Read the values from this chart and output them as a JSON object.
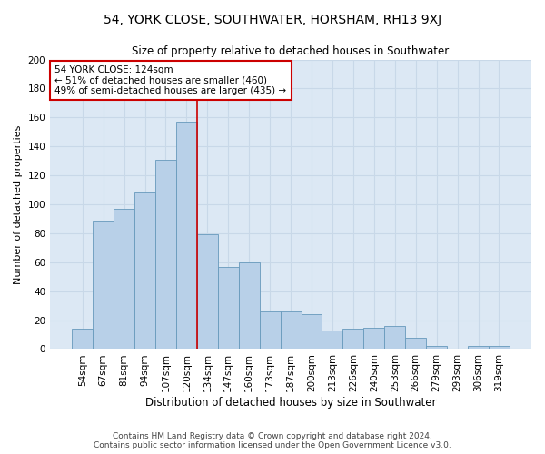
{
  "title": "54, YORK CLOSE, SOUTHWATER, HORSHAM, RH13 9XJ",
  "subtitle": "Size of property relative to detached houses in Southwater",
  "xlabel": "Distribution of detached houses by size in Southwater",
  "ylabel": "Number of detached properties",
  "footer_line1": "Contains HM Land Registry data © Crown copyright and database right 2024.",
  "footer_line2": "Contains public sector information licensed under the Open Government Licence v3.0.",
  "categories": [
    "54sqm",
    "67sqm",
    "81sqm",
    "94sqm",
    "107sqm",
    "120sqm",
    "134sqm",
    "147sqm",
    "160sqm",
    "173sqm",
    "187sqm",
    "200sqm",
    "213sqm",
    "226sqm",
    "240sqm",
    "253sqm",
    "266sqm",
    "279sqm",
    "293sqm",
    "306sqm",
    "319sqm"
  ],
  "values": [
    14,
    89,
    97,
    108,
    131,
    157,
    79,
    57,
    60,
    26,
    26,
    24,
    13,
    14,
    15,
    16,
    8,
    2,
    0,
    2,
    2
  ],
  "bar_color": "#b8d0e8",
  "bar_edge_color": "#6699bb",
  "vline_x_index": 5.5,
  "vline_color": "#cc0000",
  "annotation_title": "54 YORK CLOSE: 124sqm",
  "annotation_line1": "← 51% of detached houses are smaller (460)",
  "annotation_line2": "49% of semi-detached houses are larger (435) →",
  "annotation_box_edgecolor": "#cc0000",
  "ylim": [
    0,
    200
  ],
  "yticks": [
    0,
    20,
    40,
    60,
    80,
    100,
    120,
    140,
    160,
    180,
    200
  ],
  "grid_color": "#c8d8e8",
  "bg_color": "#dce8f4",
  "fig_bg_color": "#ffffff",
  "title_fontsize": 10,
  "subtitle_fontsize": 8.5,
  "xlabel_fontsize": 8.5,
  "ylabel_fontsize": 8,
  "tick_fontsize": 7.5,
  "footer_fontsize": 6.5,
  "ann_fontsize": 7.5
}
